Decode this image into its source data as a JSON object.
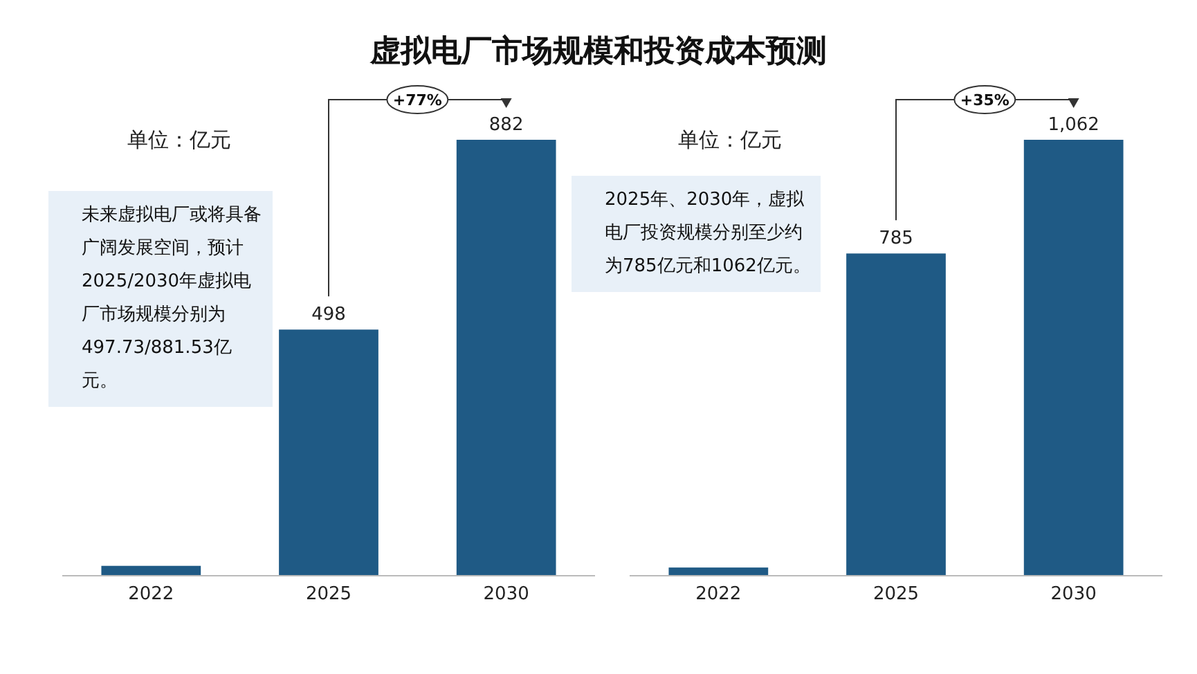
{
  "chart_data": [
    {
      "type": "bar",
      "title": "虚拟电厂市场规模和投资成本预测",
      "categories": [
        "2022",
        "2025",
        "2030"
      ],
      "values": [
        20,
        498,
        882
      ],
      "value_labels": [
        null,
        "498",
        "882"
      ],
      "color": "#1f5a85",
      "annotations": [
        "单位：亿元",
        "未来虚拟电厂或将具备广阔发展空间，预计2025/2030年虚拟电厂市场规模分别为497.73/881.53亿元。",
        "+77%"
      ]
    },
    {
      "type": "bar",
      "categories": [
        "2022",
        "2025",
        "2030"
      ],
      "values": [
        20,
        785,
        1062
      ],
      "value_labels": [
        null,
        "785",
        "1,062"
      ],
      "color": "#1f5a85",
      "annotations": [
        "单位：亿元",
        "2025年、2030年，虚拟电厂投资规模分别至少约为785亿元和1062亿元。",
        "+35%"
      ]
    }
  ]
}
